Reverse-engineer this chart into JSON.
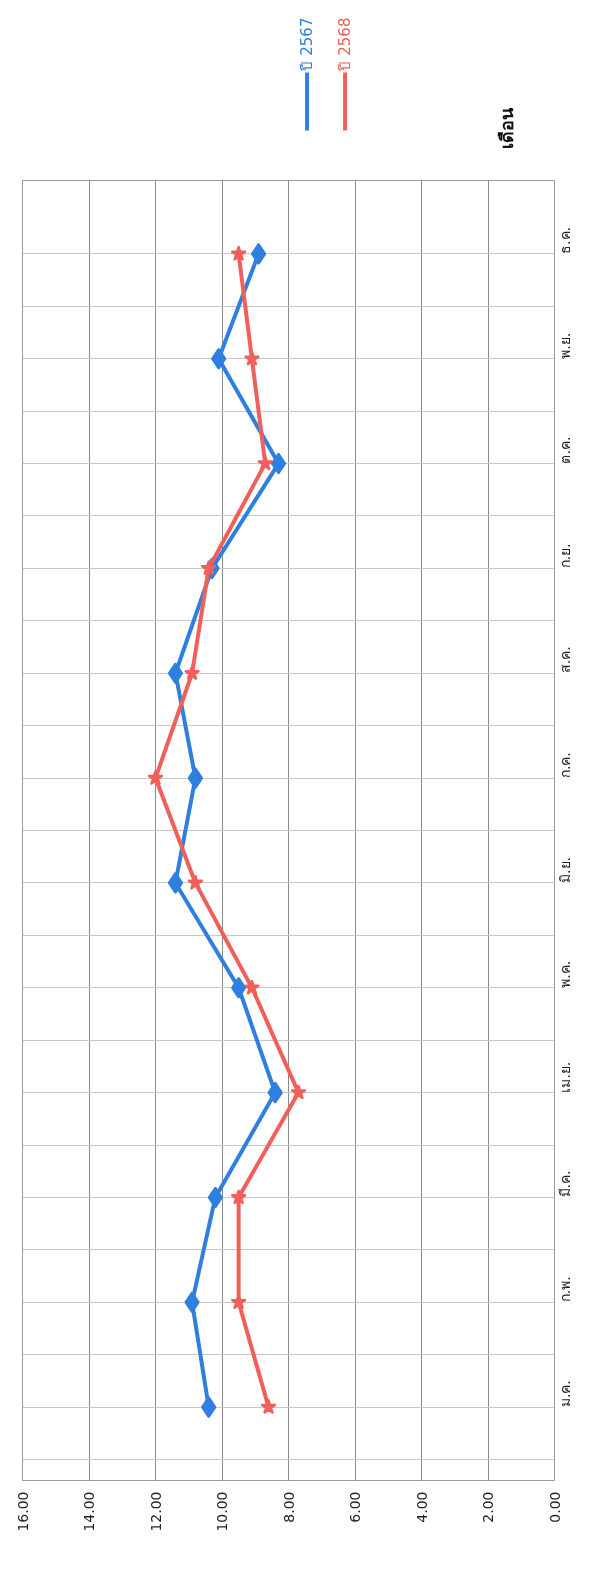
{
  "chart_data": {
    "type": "line",
    "orientation": "horizontal",
    "ylabel": "เดือน",
    "categories": [
      "ธ.ค.",
      "พ.ย.",
      "ต.ค.",
      "ก.ย.",
      "ส.ค.",
      "ก.ค.",
      "มิ.ย.",
      "พ.ค.",
      "เม.ย.",
      "มี.ค.",
      "ก.พ.",
      "ม.ค."
    ],
    "series": [
      {
        "name": "ปี 2567",
        "color": "#2f7fe0",
        "marker": "diamond",
        "values": [
          8.9,
          10.1,
          8.3,
          10.3,
          11.4,
          10.8,
          11.4,
          9.5,
          8.4,
          10.2,
          10.9,
          10.4
        ]
      },
      {
        "name": "ปี 2568",
        "color": "#f0605a",
        "marker": "star",
        "values": [
          9.5,
          9.1,
          8.7,
          10.4,
          10.9,
          12.0,
          10.8,
          9.1,
          7.7,
          9.5,
          9.5,
          8.6
        ]
      }
    ],
    "xlim": [
      16,
      0
    ],
    "xticks": [
      {
        "value": 16,
        "label": "16.00"
      },
      {
        "value": 14,
        "label": "14.00"
      },
      {
        "value": 12,
        "label": "12.00"
      },
      {
        "value": 10,
        "label": "10.00"
      },
      {
        "value": 8,
        "label": "8.00"
      },
      {
        "value": 6,
        "label": "6.00"
      },
      {
        "value": 4,
        "label": "4.00"
      },
      {
        "value": 2,
        "label": "2.00"
      },
      {
        "value": 0,
        "label": "0.00"
      }
    ],
    "grid": true,
    "legend": "top right",
    "line_style": "solid"
  }
}
